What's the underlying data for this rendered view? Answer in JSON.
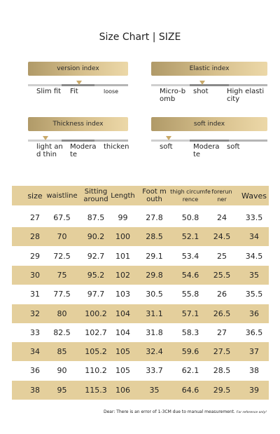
{
  "title": "Size Chart | SIZE",
  "indices": [
    {
      "label": "version index",
      "options": [
        "Slim fit",
        "Fit",
        "loose"
      ],
      "selected": 1
    },
    {
      "label": "Elastic index",
      "options": [
        "Micro-bomb",
        "shot",
        "High elasticity"
      ],
      "selected": 1
    },
    {
      "label": "Thickness index",
      "options": [
        "light and thin",
        "Moderate",
        "thicken"
      ],
      "selected": 0
    },
    {
      "label": "soft index",
      "options": [
        "soft",
        "Moderate",
        "soft"
      ],
      "selected": 0
    }
  ],
  "table": {
    "header": [
      "size",
      "waistline",
      "Sitting around",
      "Length",
      "Foot mouth",
      "thigh circumference",
      "forerunner",
      "Waves"
    ],
    "rows": [
      [
        27,
        67.5,
        87.5,
        99,
        27.8,
        50.8,
        24,
        33.5
      ],
      [
        28,
        70,
        90.2,
        100,
        28.5,
        52.1,
        24.5,
        34
      ],
      [
        29,
        72.5,
        92.7,
        101,
        29.1,
        53.4,
        25,
        34.5
      ],
      [
        30,
        75,
        95.2,
        102,
        29.8,
        54.6,
        25.5,
        35
      ],
      [
        31,
        77.5,
        97.7,
        103,
        30.5,
        55.8,
        26,
        35.5
      ],
      [
        32,
        80,
        100.2,
        104,
        31.1,
        57.1,
        26.5,
        36
      ],
      [
        33,
        82.5,
        102.7,
        104,
        31.8,
        58.3,
        27,
        36.5
      ],
      [
        34,
        85,
        105.2,
        105,
        32.4,
        59.6,
        27.5,
        37
      ],
      [
        36,
        90,
        110.2,
        105,
        33.7,
        62.1,
        28.5,
        38
      ],
      [
        38,
        95,
        115.3,
        106,
        35,
        64.6,
        29.5,
        39
      ]
    ]
  },
  "note": {
    "text": "Dear: There is an error of 1-3CM due to manual measurement.",
    "small": "For reference only!"
  }
}
